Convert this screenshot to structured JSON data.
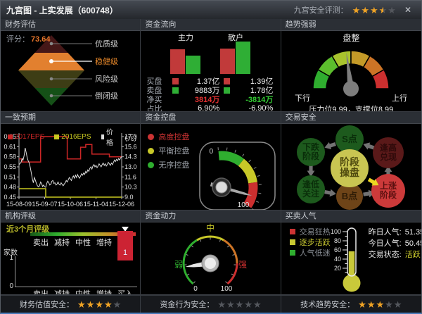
{
  "window": {
    "title": "九宫图 - 上实发展（600748）",
    "rating_label": "九宫安全评测：",
    "rating": {
      "full": 3,
      "half": 1,
      "empty": 1
    },
    "close_glyph": "✕"
  },
  "panels": {
    "finance": {
      "title": "财务评估",
      "score_label": "评分：",
      "score": "73.64",
      "score_color": "#e8762a",
      "levels": [
        {
          "label": "优质级",
          "color": "#451717",
          "label_color": "#cccccc",
          "active": false
        },
        {
          "label": "稳健级",
          "color": "#e2802f",
          "label_color": "#e8882a",
          "active": true
        },
        {
          "label": "风险级",
          "color": "#3d3d15",
          "label_color": "#cccccc",
          "active": false
        },
        {
          "label": "倒闭级",
          "color": "#155017",
          "label_color": "#cccccc",
          "active": false
        }
      ]
    },
    "flow": {
      "title": "资金流向",
      "group_labels": [
        "主力",
        "散户"
      ],
      "rows": [
        {
          "label": "买盘",
          "v1": "1.37亿",
          "v2": "1.39亿",
          "v1_color": "#f0f0f0",
          "v2_color": "#f0f0f0"
        },
        {
          "label": "卖盘",
          "v1": "9883万",
          "v2": "1.78亿",
          "v1_color": "#f0f0f0",
          "v2_color": "#f0f0f0"
        },
        {
          "label": "净买",
          "v1": "3814万",
          "v2": "-3814万",
          "v1_color": "#e63232",
          "v2_color": "#33cc33"
        },
        {
          "label": "占比",
          "v1": "6.90%",
          "v2": "-6.90%",
          "v1_color": "#f0f0f0",
          "v2_color": "#f0f0f0"
        }
      ]
    },
    "trend": {
      "title": "趋势强弱",
      "status": "盘整",
      "left_label": "下行",
      "right_label": "上行",
      "footnote": "压力位9.99，支撑位8.99"
    },
    "consensus": {
      "title": "一致预期",
      "legend": [
        {
          "label": "2017EPS",
          "color": "#cc2626"
        },
        {
          "label": "2016EPS",
          "color": "#c8c820"
        },
        {
          "label": "价格",
          "color": "#dcdcdc"
        }
      ],
      "unit": "(元)"
    },
    "control": {
      "title": "资金控盘",
      "legend": [
        {
          "label": "高度控盘",
          "dot": "#cc3333",
          "text_color": "#cc3333"
        },
        {
          "label": "平衡控盘",
          "dot": "#c8c828",
          "text_color": "#9a9fa6"
        },
        {
          "label": "无序控盘",
          "dot": "#2fae2f",
          "text_color": "#9a9fa6"
        }
      ]
    },
    "safety": {
      "title": "交易安全",
      "center": {
        "label": "阶段操盘",
        "color": "#c9c552",
        "text_color": "#4f4a0e"
      },
      "nodes": [
        {
          "label": "S点",
          "pos": "top",
          "color": "#1d5a1d",
          "text_color": "#0a2e0a"
        },
        {
          "label": "逢高兑现",
          "pos": "top-right",
          "color": "#5a1919",
          "text_color": "#2e0a0a"
        },
        {
          "label": "上涨阶段",
          "pos": "bottom-right",
          "color": "#cc3a3a",
          "text_color": "#5c1010",
          "active": true
        },
        {
          "label": "B点",
          "pos": "bottom",
          "color": "#6e4418",
          "text_color": "#2e1c06"
        },
        {
          "label": "逢低关注",
          "pos": "bottom-left",
          "color": "#1d5a1d",
          "text_color": "#0a2e0a"
        },
        {
          "label": "下跌阶段",
          "pos": "top-left",
          "color": "#1d5a1d",
          "text_color": "#0a2e0a"
        }
      ]
    },
    "rating": {
      "title": "机构评级",
      "subtitle": "近3个月评级",
      "subtitle_color": "#b8b82a"
    },
    "momentum": {
      "title": "资金动力",
      "weak": "弱",
      "mid": "中",
      "strong": "强",
      "weak_color": "#30b030",
      "mid_color": "#c8c828",
      "strong_color": "#d03030",
      "min": "0",
      "max": "100"
    },
    "popularity": {
      "title": "买卖人气",
      "legend": [
        {
          "label": "交易狂热",
          "dot": "#cc3333",
          "text_color": "#8a8f96"
        },
        {
          "label": "逐步活跃",
          "dot": "#c8c832",
          "text_color": "#c8c832"
        },
        {
          "label": "人气低迷",
          "dot": "#2fae2f",
          "text_color": "#8a8f96"
        }
      ],
      "stats": [
        {
          "label": "昨日人气:",
          "value": "51.35",
          "value_color": "#f0f0f0"
        },
        {
          "label": "今日人气:",
          "value": "50.45",
          "value_color": "#f0f0f0"
        },
        {
          "label": "交易状态:",
          "value": "活跃",
          "value_color": "#d8d830"
        }
      ]
    }
  },
  "footer": [
    {
      "label": "财务估值安全：",
      "stars": {
        "full": 4,
        "half": 0,
        "empty": 1
      }
    },
    {
      "label": "资金行为安全：",
      "stars": {
        "full": 0,
        "half": 0,
        "empty": 5
      }
    },
    {
      "label": "技术趋势安全：",
      "stars": {
        "full": 3,
        "half": 0,
        "empty": 2
      }
    }
  ],
  "chart_data": [
    {
      "id": "fund_flow",
      "type": "bar",
      "categories": [
        "主力",
        "散户"
      ],
      "series": [
        {
          "name": "买盘",
          "color": "#c13a3a",
          "values": [
            1.37,
            1.39
          ],
          "unit": "亿"
        },
        {
          "name": "卖盘",
          "color": "#2fae35",
          "values": [
            0.9883,
            1.78
          ],
          "unit": "亿"
        }
      ]
    },
    {
      "id": "consensus",
      "type": "line",
      "x_range": [
        0,
        100
      ],
      "x_tick_labels": [
        "15-08-09",
        "15-09-07",
        "15-10-06",
        "15-11-04",
        "15-12-06"
      ],
      "y_left": {
        "ticks": [
          "0.65",
          "0.61",
          "0.58",
          "0.55",
          "0.51",
          "0.48",
          "0.45"
        ],
        "range": [
          0.45,
          0.65
        ]
      },
      "y_right": {
        "unit": "(元)",
        "ticks": [
          "17.0",
          "15.6",
          "14.3",
          "13.0",
          "11.6",
          "10.3",
          "9.0"
        ],
        "range": [
          9.0,
          17.0
        ]
      },
      "series": [
        {
          "name": "2017EPS",
          "color": "#cc2626",
          "axis": "left",
          "points": [
            [
              0,
              0.576
            ],
            [
              3,
              0.576
            ],
            [
              3,
              0.566
            ],
            [
              21,
              0.566
            ],
            [
              21,
              0.65
            ],
            [
              47,
              0.65
            ],
            [
              47,
              0.576
            ],
            [
              60,
              0.576
            ],
            [
              60,
              0.615
            ],
            [
              65,
              0.615
            ],
            [
              65,
              0.624
            ],
            [
              71,
              0.624
            ],
            [
              71,
              0.592
            ],
            [
              88,
              0.592
            ],
            [
              88,
              0.583
            ],
            [
              100,
              0.583
            ]
          ]
        },
        {
          "name": "2016EPS",
          "color": "#c8c820",
          "axis": "left",
          "points": [
            [
              0,
              0.478
            ],
            [
              26,
              0.478
            ],
            [
              26,
              0.45
            ],
            [
              100,
              0.45
            ]
          ]
        },
        {
          "name": "价格",
          "color": "#dcdcdc",
          "axis": "right",
          "points": [
            [
              0,
              13.3
            ],
            [
              2,
              13.6
            ],
            [
              3,
              14.1
            ],
            [
              4,
              13.9
            ],
            [
              5,
              14.5
            ],
            [
              6,
              15.5
            ],
            [
              7,
              14.9
            ],
            [
              8,
              14.2
            ],
            [
              9,
              13.8
            ],
            [
              10,
              13.5
            ],
            [
              11,
              12.9
            ],
            [
              12,
              12.2
            ],
            [
              13,
              11.4
            ],
            [
              14,
              10.9
            ],
            [
              15,
              11.6
            ],
            [
              16,
              11.2
            ],
            [
              17,
              10.8
            ],
            [
              18,
              10.5
            ],
            [
              19,
              10.35
            ],
            [
              20,
              10.5
            ],
            [
              21,
              11.0
            ],
            [
              22,
              10.8
            ],
            [
              23,
              10.4
            ],
            [
              24,
              10.6
            ],
            [
              25,
              10.35
            ],
            [
              26,
              10.3
            ],
            [
              27,
              10.8
            ],
            [
              28,
              11.1
            ],
            [
              29,
              10.9
            ],
            [
              30,
              10.6
            ],
            [
              31,
              10.7
            ],
            [
              32,
              11.1
            ],
            [
              33,
              11.2
            ],
            [
              34,
              10.8
            ],
            [
              35,
              10.9
            ],
            [
              36,
              10.6
            ],
            [
              37,
              10.7
            ],
            [
              38,
              11.0
            ],
            [
              39,
              10.7
            ],
            [
              40,
              10.6
            ],
            [
              41,
              10.9
            ],
            [
              42,
              10.7
            ],
            [
              43,
              10.5
            ],
            [
              44,
              10.7
            ],
            [
              45,
              10.9
            ],
            [
              46,
              11.2
            ],
            [
              47,
              11.0
            ],
            [
              48,
              11.3
            ],
            [
              49,
              11.6
            ],
            [
              50,
              11.4
            ],
            [
              51,
              11.2
            ],
            [
              52,
              11.6
            ],
            [
              53,
              11.8
            ],
            [
              54,
              11.5
            ],
            [
              55,
              11.9
            ],
            [
              56,
              11.6
            ],
            [
              57,
              12.0
            ],
            [
              58,
              11.7
            ],
            [
              59,
              11.5
            ],
            [
              60,
              11.8
            ],
            [
              61,
              12.1
            ],
            [
              62,
              11.9
            ],
            [
              63,
              12.2
            ],
            [
              64,
              12.0
            ],
            [
              65,
              12.4
            ],
            [
              66,
              12.2
            ],
            [
              67,
              12.6
            ],
            [
              68,
              12.4
            ],
            [
              69,
              12.8
            ],
            [
              70,
              13.0
            ],
            [
              71,
              12.7
            ],
            [
              72,
              13.1
            ],
            [
              73,
              13.3
            ],
            [
              74,
              13.0
            ],
            [
              75,
              13.2
            ],
            [
              76,
              12.9
            ],
            [
              77,
              13.1
            ],
            [
              78,
              13.4
            ],
            [
              79,
              13.2
            ],
            [
              80,
              13.0
            ],
            [
              81,
              13.3
            ],
            [
              82,
              13.5
            ],
            [
              83,
              13.2
            ],
            [
              84,
              13.4
            ],
            [
              85,
              13.1
            ],
            [
              86,
              13.3
            ],
            [
              87,
              13.6
            ],
            [
              88,
              13.4
            ],
            [
              89,
              13.2
            ],
            [
              90,
              13.5
            ],
            [
              91,
              13.3
            ],
            [
              92,
              13.6
            ],
            [
              93,
              13.9
            ],
            [
              94,
              13.7
            ],
            [
              95,
              14.0
            ],
            [
              96,
              13.8
            ],
            [
              97,
              14.1
            ],
            [
              98,
              13.9
            ],
            [
              99,
              14.2
            ],
            [
              100,
              14.35
            ]
          ]
        }
      ]
    },
    {
      "id": "institution_rating",
      "type": "bar",
      "categories": [
        "卖出",
        "减持",
        "中性",
        "增持",
        "买入"
      ],
      "values": [
        0,
        0,
        0,
        0,
        1
      ],
      "ymax": 1,
      "ylabel": "家数",
      "yticks": [
        "1",
        "0"
      ],
      "marker_index": 4,
      "bar_color": "#cc2333",
      "scale_colors": [
        "#185818",
        "#2fae2f",
        "#9cc22c",
        "#c49028",
        "#cc2f2f"
      ]
    },
    {
      "id": "trend_gauge",
      "type": "gauge",
      "value_pct": 46,
      "min_label": "下行",
      "max_label": "上行",
      "segment_colors": [
        "#2fae2f",
        "#5cbe2d",
        "#a8c32d",
        "#c49a28",
        "#cc7426",
        "#cc2f2f"
      ]
    },
    {
      "id": "control_gauge",
      "type": "gauge",
      "value_pct": 85,
      "min_label": "0",
      "max_label": "100",
      "segment_colors": [
        "#2fae2f",
        "#c8c828",
        "#cc2f2f"
      ]
    },
    {
      "id": "momentum_gauge",
      "type": "gauge",
      "value_pct": 15,
      "min_label": "0",
      "max_label": "100",
      "segment_colors": [
        "#2fae2f",
        "#c8c828",
        "#cc7426",
        "#cc2f2f"
      ]
    },
    {
      "id": "popularity_thermometer",
      "type": "gauge",
      "value_pct": 57,
      "ticks": [
        "100",
        "80",
        "60",
        "40",
        "20"
      ],
      "fill_color": "#c9c93a"
    }
  ]
}
